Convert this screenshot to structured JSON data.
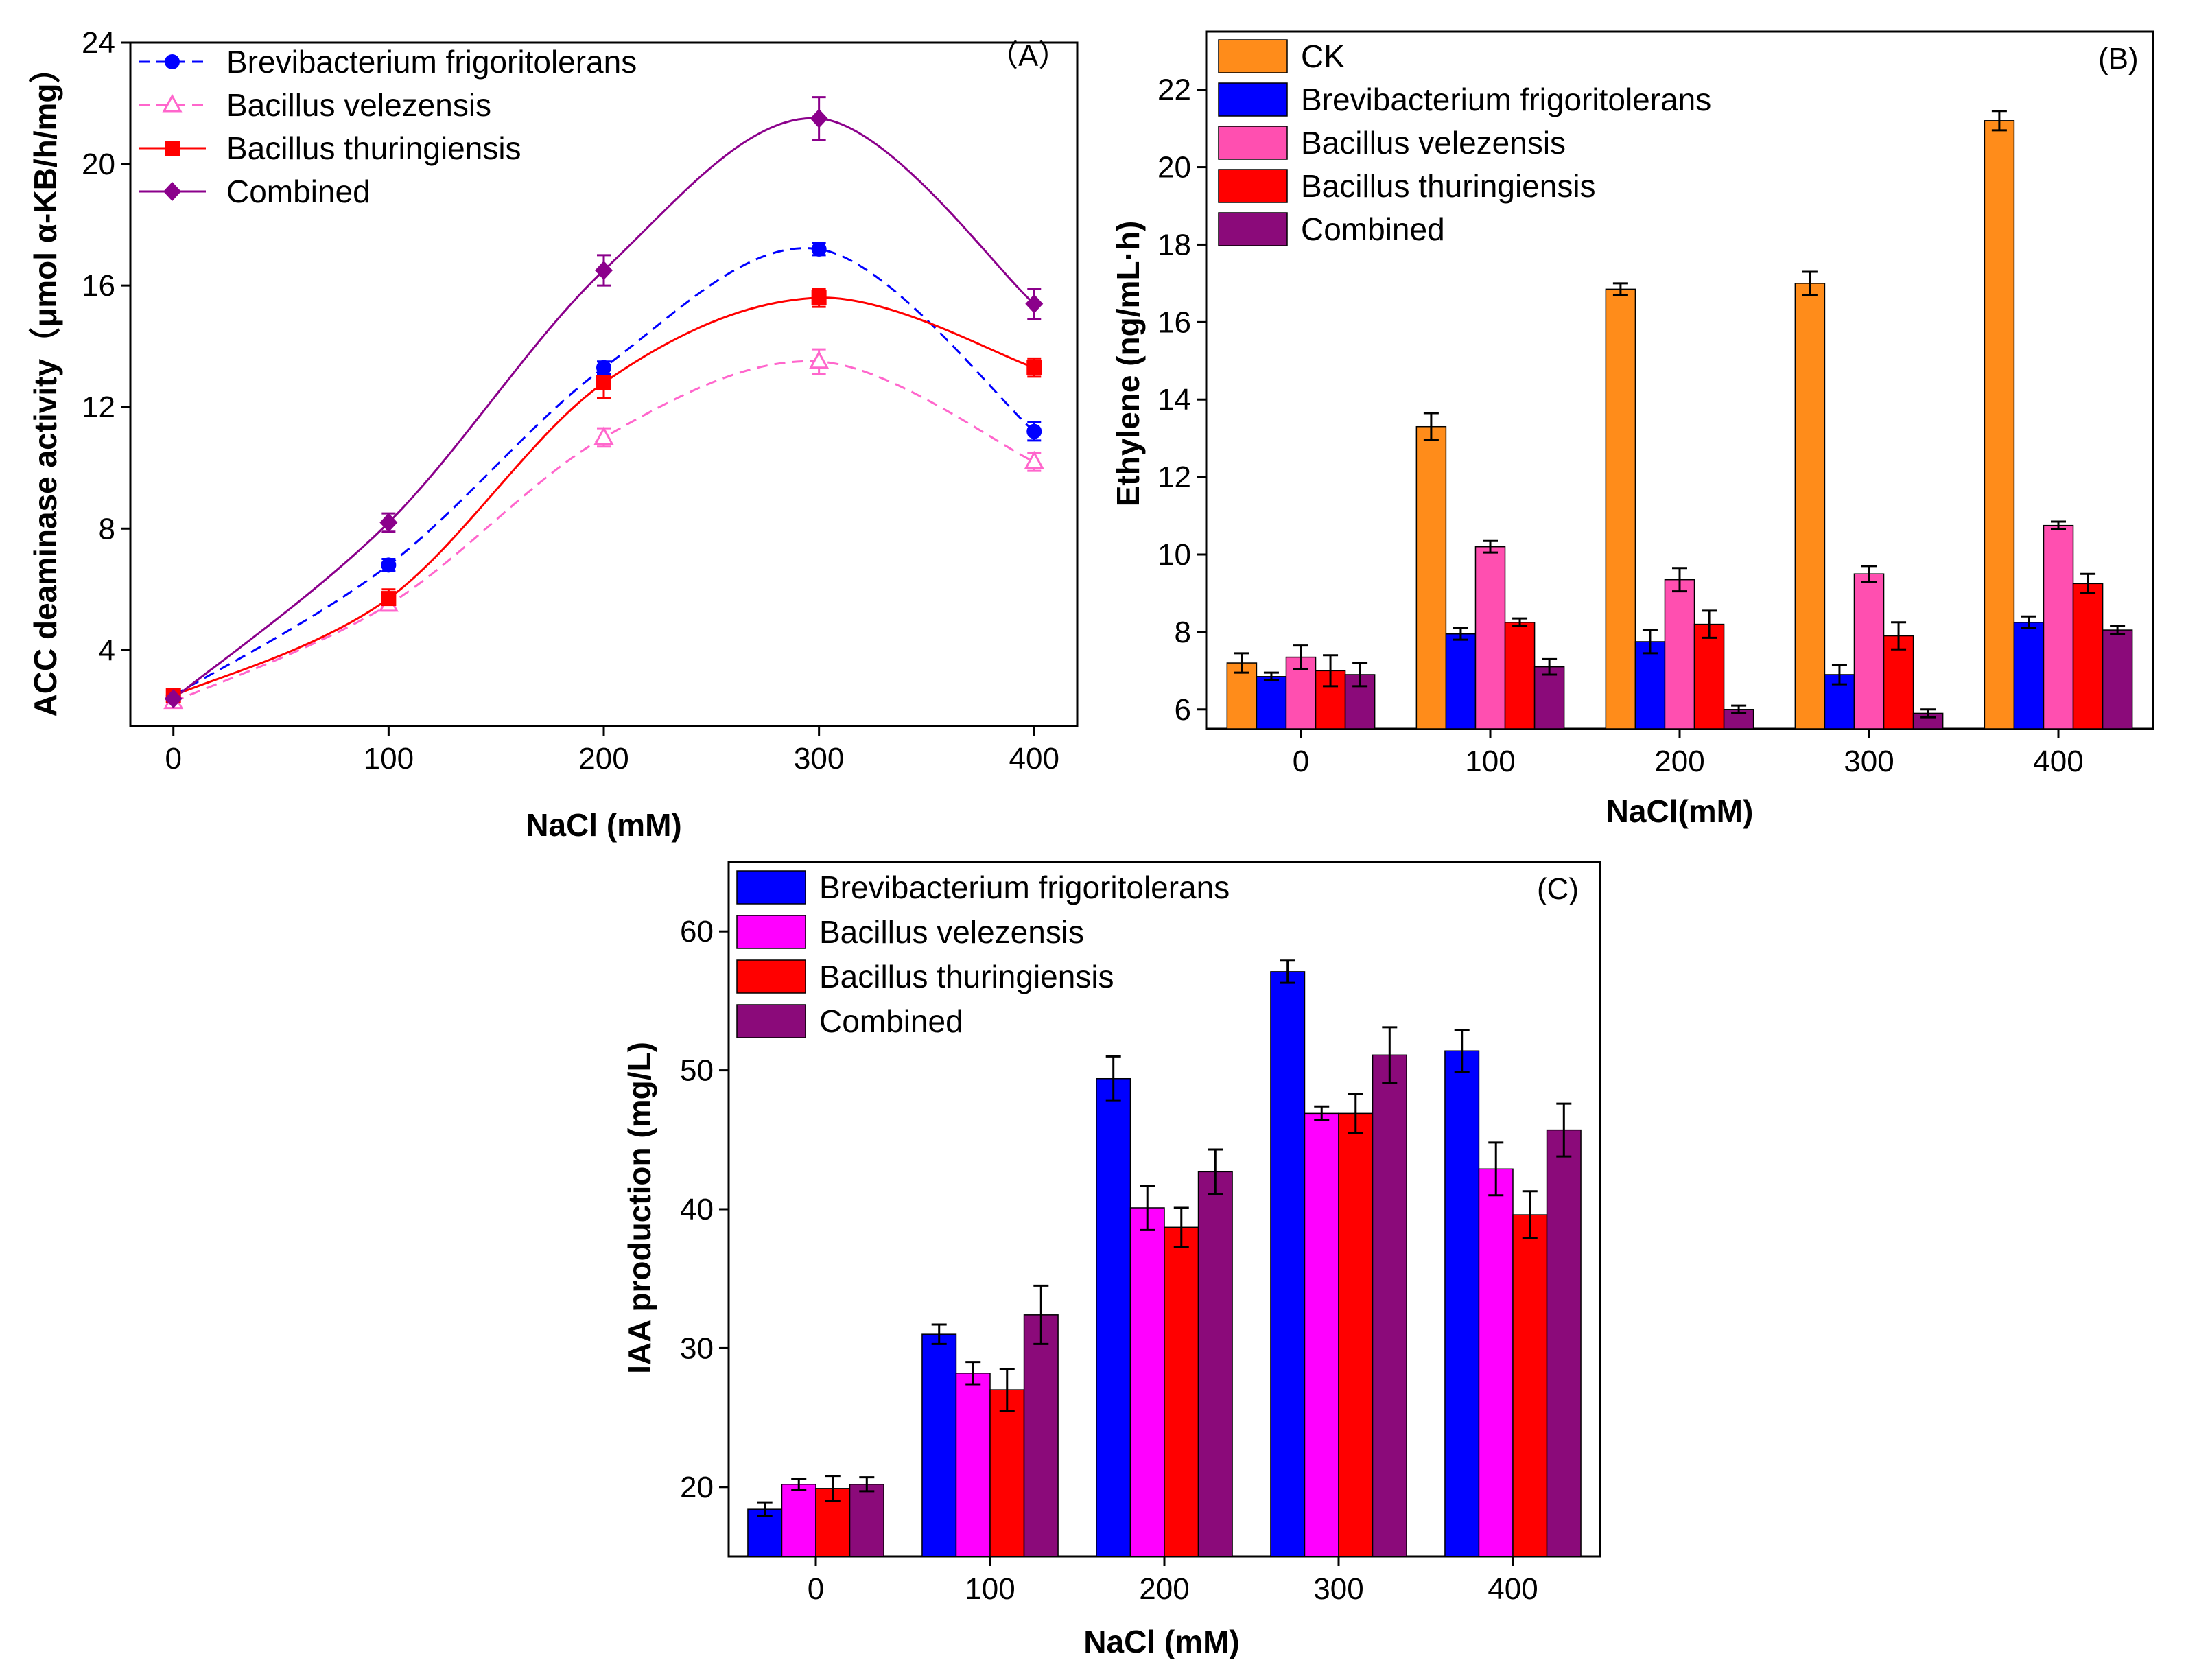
{
  "colors": {
    "blue": "#0000ff",
    "pink": "#ff66cc",
    "red": "#ff0000",
    "purple": "#8b008b",
    "orange": "#ff8c1a",
    "magenta": "#ff00ff",
    "hotpink": "#ff4fb0",
    "darkpurple": "#8b0a7a"
  },
  "chart_data": [
    {
      "id": "A",
      "type": "line",
      "title": "（A）",
      "xlabel": "NaCl (mM)",
      "ylabel": "ACC deaminase activity（μmol α-KB/h/mg）",
      "x": [
        0,
        100,
        200,
        300,
        400
      ],
      "x_ticks": [
        "0",
        "100",
        "200",
        "300",
        "400"
      ],
      "xlim": [
        -20,
        420
      ],
      "y_ticks": [
        "4",
        "8",
        "12",
        "16",
        "20",
        "24"
      ],
      "ylim": [
        1.5,
        24
      ],
      "series": [
        {
          "name": "Brevibacterium frigoritolerans",
          "values": [
            2.5,
            6.8,
            13.3,
            17.2,
            11.2
          ],
          "errors": [
            0.2,
            0.2,
            0.2,
            0.2,
            0.3
          ],
          "color": "#0000ff",
          "marker": "circle",
          "dash": true
        },
        {
          "name": "Bacillus velezensis",
          "values": [
            2.3,
            5.5,
            11.0,
            13.5,
            10.2
          ],
          "errors": [
            0.2,
            0.2,
            0.3,
            0.4,
            0.3
          ],
          "color": "#ff66cc",
          "marker": "triangle-open",
          "dash": true
        },
        {
          "name": "Bacillus thuringiensis",
          "values": [
            2.5,
            5.7,
            12.8,
            15.6,
            13.3
          ],
          "errors": [
            0.2,
            0.3,
            0.5,
            0.3,
            0.3
          ],
          "color": "#ff0000",
          "marker": "square",
          "dash": false
        },
        {
          "name": "Combined",
          "values": [
            2.4,
            8.2,
            16.5,
            21.5,
            15.4
          ],
          "errors": [
            0.2,
            0.3,
            0.5,
            0.7,
            0.5
          ],
          "color": "#8b008b",
          "marker": "diamond",
          "dash": false
        }
      ]
    },
    {
      "id": "B",
      "type": "bar",
      "title": "(B)",
      "xlabel": "NaCl(mM)",
      "ylabel": "Ethylene (ng/mL·h)",
      "categories": [
        "0",
        "100",
        "200",
        "300",
        "400"
      ],
      "y_ticks": [
        "6",
        "8",
        "10",
        "12",
        "14",
        "16",
        "18",
        "20",
        "22"
      ],
      "ylim": [
        5.5,
        23.5
      ],
      "series": [
        {
          "name": "CK",
          "values": [
            7.2,
            13.3,
            16.85,
            17.0,
            21.2
          ],
          "errors": [
            0.25,
            0.35,
            0.15,
            0.3,
            0.25
          ],
          "color": "#ff8c1a"
        },
        {
          "name": "Brevibacterium frigoritolerans",
          "values": [
            6.85,
            7.95,
            7.75,
            6.9,
            8.25
          ],
          "errors": [
            0.1,
            0.15,
            0.3,
            0.25,
            0.15
          ],
          "color": "#0000ff"
        },
        {
          "name": "Bacillus velezensis",
          "values": [
            7.35,
            10.2,
            9.35,
            9.5,
            10.75
          ],
          "errors": [
            0.3,
            0.15,
            0.3,
            0.2,
            0.1
          ],
          "color": "#ff4fb0"
        },
        {
          "name": "Bacillus thuringiensis",
          "values": [
            7.0,
            8.25,
            8.2,
            7.9,
            9.25
          ],
          "errors": [
            0.4,
            0.1,
            0.35,
            0.35,
            0.25
          ],
          "color": "#ff0000"
        },
        {
          "name": "Combined",
          "values": [
            6.9,
            7.1,
            6.0,
            5.9,
            8.05
          ],
          "errors": [
            0.3,
            0.2,
            0.1,
            0.1,
            0.1
          ],
          "color": "#8b0a7a"
        }
      ]
    },
    {
      "id": "C",
      "type": "bar",
      "title": "(C)",
      "xlabel": "NaCl (mM)",
      "ylabel": "IAA production (mg/L)",
      "categories": [
        "0",
        "100",
        "200",
        "300",
        "400"
      ],
      "y_ticks": [
        "20",
        "30",
        "40",
        "50",
        "60"
      ],
      "ylim": [
        15,
        65
      ],
      "series": [
        {
          "name": "Brevibacterium frigoritolerans",
          "values": [
            18.4,
            31.0,
            49.4,
            57.1,
            51.4
          ],
          "errors": [
            0.5,
            0.7,
            1.6,
            0.8,
            1.5
          ],
          "color": "#0000ff"
        },
        {
          "name": "Bacillus velezensis",
          "values": [
            20.2,
            28.2,
            40.1,
            46.9,
            42.9
          ],
          "errors": [
            0.4,
            0.8,
            1.6,
            0.5,
            1.9
          ],
          "color": "#ff00ff"
        },
        {
          "name": "Bacillus thuringiensis",
          "values": [
            19.9,
            27.0,
            38.7,
            46.9,
            39.6
          ],
          "errors": [
            0.9,
            1.5,
            1.4,
            1.4,
            1.7
          ],
          "color": "#ff0000"
        },
        {
          "name": "Combined",
          "values": [
            20.2,
            32.4,
            42.7,
            51.1,
            45.7
          ],
          "errors": [
            0.5,
            2.1,
            1.6,
            2.0,
            1.9
          ],
          "color": "#8b0a7a"
        }
      ]
    }
  ]
}
